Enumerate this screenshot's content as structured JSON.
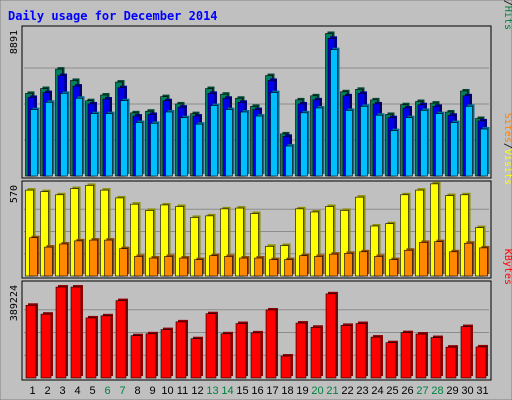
{
  "title": "Daily usage for December 2014",
  "chart_data": {
    "type": "bar",
    "title": "Daily usage for December 2014",
    "categories": [
      "1",
      "2",
      "3",
      "4",
      "5",
      "6",
      "7",
      "8",
      "9",
      "10",
      "11",
      "12",
      "13",
      "14",
      "15",
      "16",
      "17",
      "18",
      "19",
      "20",
      "21",
      "22",
      "23",
      "24",
      "25",
      "26",
      "27",
      "28",
      "29",
      "30",
      "31"
    ],
    "weekend_days": [
      "6",
      "7",
      "13",
      "14",
      "20",
      "21",
      "27",
      "28"
    ],
    "panels": [
      {
        "id": "pages_files_hits",
        "max_label": "8891",
        "ymax": 8891,
        "legend": [
          {
            "label": "Pages",
            "color": "#00c0ff"
          },
          {
            "label": "/",
            "color": "#000000"
          },
          {
            "label": "Files",
            "color": "#0000ff"
          },
          {
            "label": "/",
            "color": "#000000"
          },
          {
            "label": "Hits",
            "color": "#008040"
          }
        ],
        "series": [
          {
            "name": "Hits",
            "color": "#00805c",
            "values": [
              5100,
              5400,
              6600,
              5900,
              4650,
              5000,
              5800,
              3900,
              4000,
              4900,
              4450,
              3850,
              5400,
              5050,
              4800,
              4300,
              6200,
              2600,
              4700,
              4950,
              8800,
              5200,
              5350,
              4700,
              3800,
              4400,
              4600,
              4500,
              3950,
              5250,
              3550
            ]
          },
          {
            "name": "Files",
            "color": "#0000ee",
            "values": [
              4850,
              5150,
              6200,
              5550,
              4450,
              4750,
              5450,
              3700,
              3800,
              4650,
              4250,
              3700,
              5100,
              4800,
              4550,
              4100,
              5900,
              2450,
              4450,
              4700,
              8500,
              4950,
              5100,
              4450,
              3600,
              4200,
              4400,
              4300,
              3750,
              4950,
              3400
            ]
          },
          {
            "name": "Pages",
            "color": "#00bfff",
            "values": [
              4100,
              4550,
              5100,
              4800,
              3850,
              3850,
              4650,
              3300,
              3250,
              3950,
              3600,
              3200,
              4350,
              4100,
              3950,
              3700,
              5150,
              1850,
              3900,
              4200,
              7800,
              4050,
              4300,
              3750,
              2800,
              3600,
              4050,
              3850,
              3300,
              4300,
              2900
            ]
          }
        ]
      },
      {
        "id": "visits_sites",
        "max_label": "570",
        "ymax": 570,
        "legend": [
          {
            "label": "Sites",
            "color": "#ff8000"
          },
          {
            "label": "/",
            "color": "#000000"
          },
          {
            "label": "Visits",
            "color": "#ffff00"
          }
        ],
        "series": [
          {
            "name": "Visits",
            "color": "#ffff00",
            "values": [
              550,
              540,
              520,
              560,
              580,
              550,
              500,
              460,
              420,
              455,
              445,
              375,
              385,
              430,
              435,
              400,
              190,
              195,
              430,
              410,
              445,
              420,
              505,
              320,
              335,
              520,
              550,
              590,
              515,
              520,
              310
            ]
          },
          {
            "name": "Sites",
            "color": "#ff8800",
            "values": [
              245,
              185,
              205,
              225,
              230,
              230,
              175,
              125,
              115,
              125,
              115,
              105,
              130,
              125,
              115,
              115,
              105,
              105,
              130,
              125,
              140,
              145,
              155,
              125,
              105,
              165,
              215,
              220,
              155,
              210,
              180
            ]
          }
        ]
      },
      {
        "id": "kbytes",
        "max_label": "389224",
        "ymax": 389224,
        "legend": [
          {
            "label": "KBytes",
            "color": "#ff0000"
          }
        ],
        "series": [
          {
            "name": "KBytes",
            "color": "#ff0000",
            "values": [
              311000,
              273000,
              389000,
              389000,
              257000,
              266000,
              331000,
              181000,
              189000,
              207000,
              240000,
              168000,
              275000,
              189000,
              233000,
              193000,
              291000,
              94000,
              235000,
              217000,
              360000,
              225000,
              233000,
              175000,
              151000,
              194000,
              188000,
              173000,
              132000,
              220000,
              133000
            ]
          }
        ]
      }
    ]
  }
}
